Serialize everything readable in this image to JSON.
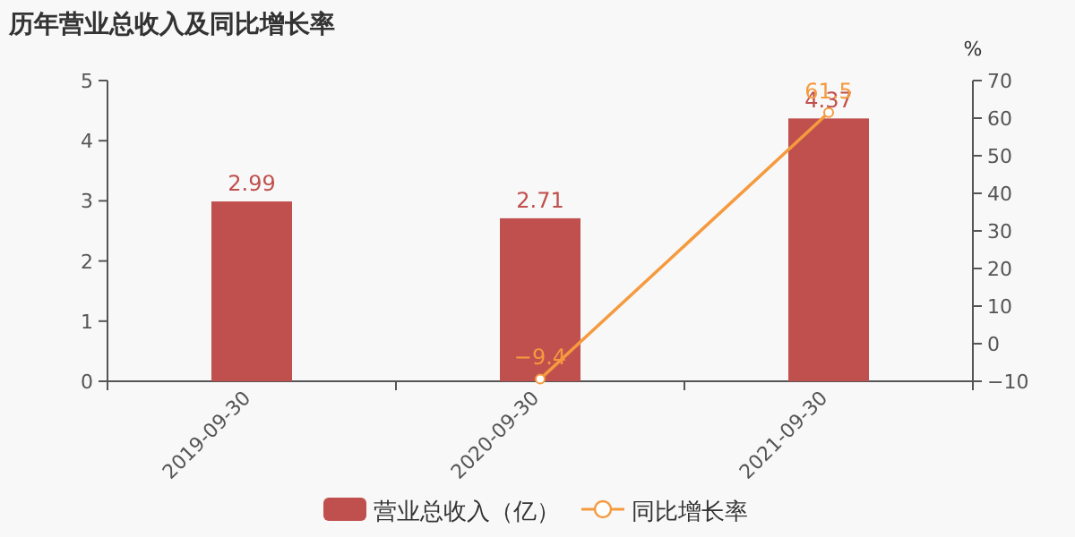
{
  "chart_data": {
    "type": "bar",
    "title": "历年营业总收入及同比增长率",
    "categories": [
      "2019-09-30",
      "2020-09-30",
      "2021-09-30"
    ],
    "series": [
      {
        "name": "营业总收入（亿）",
        "color": "#c0504d",
        "values": [
          2.99,
          2.71,
          4.37
        ]
      },
      {
        "name": "同比增长率",
        "type": "line",
        "axis": "y2",
        "color": "#f59a3e",
        "marker": "circle",
        "line_style": "solid",
        "values": [
          null,
          -9.4,
          61.5
        ]
      }
    ],
    "ylim": [
      0,
      5
    ],
    "yticks": [
      0,
      1,
      2,
      3,
      4,
      5
    ],
    "y2label": "%",
    "y2lim": [
      -10,
      70
    ],
    "y2ticks": [
      -10,
      0,
      10,
      20,
      30,
      40,
      50,
      60,
      70
    ],
    "data_labels": true,
    "legend": "bottom",
    "grid": false
  }
}
